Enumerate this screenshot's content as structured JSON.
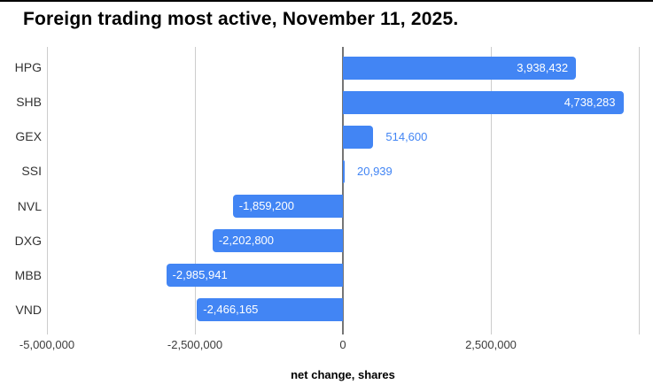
{
  "frame": {
    "background": "#ffffff",
    "top_border_color": "#000000"
  },
  "chart_data": {
    "type": "bar",
    "orientation": "horizontal",
    "title": "Foreign trading most active, November 11, 2025.",
    "xlabel": "net change, shares",
    "categories": [
      "HPG",
      "SHB",
      "GEX",
      "SSI",
      "NVL",
      "DXG",
      "MBB",
      "VND"
    ],
    "values": [
      3938432,
      4738283,
      514600,
      20939,
      -1859200,
      -2202800,
      -2985941,
      -2466165
    ],
    "value_labels": [
      "3,938,432",
      "4,738,283",
      "514,600",
      "20,939",
      "-1,859,200",
      "-2,202,800",
      "-2,985,941",
      "-2,466,165"
    ],
    "xlim": [
      -5000000,
      5000000
    ],
    "x_ticks": [
      {
        "value": -5000000,
        "label": "-5,000,000"
      },
      {
        "value": -2500000,
        "label": "-2,500,000"
      },
      {
        "value": 0,
        "label": "0"
      },
      {
        "value": 2500000,
        "label": "2,500,000"
      },
      {
        "value": 5000000,
        "label": ""
      }
    ],
    "grid": true,
    "legend": "none",
    "colors": {
      "bar": "#4285f4",
      "label_inside": "#ffffff",
      "label_outside": "#4285f4",
      "gridline": "#cccccc",
      "zero_line": "#757575",
      "tick_text": "#3c3c3c",
      "category_text": "#333333",
      "title_text": "#000000"
    }
  }
}
